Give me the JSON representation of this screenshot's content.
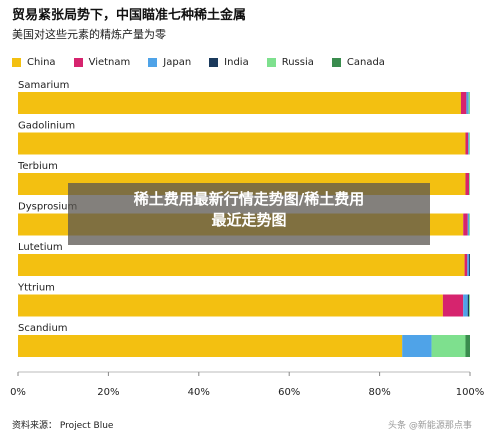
{
  "header": {
    "title": "贸易紧张局势下，中国瞄准七种稀土金属",
    "subtitle": "美国对这些元素的精炼产量为零"
  },
  "overlay": {
    "line1": "稀土费用最新行情走势图/稀土费用",
    "line2": "最近走势图"
  },
  "footer": {
    "source": "资料来源： Project Blue",
    "watermark": "头条 @新能源那点事"
  },
  "colors": {
    "China": "#F3C011",
    "Vietnam": "#D6246E",
    "Japan": "#4FA3E8",
    "India": "#1B3A5C",
    "Russia": "#7EE08E",
    "Canada": "#3A8C4E"
  },
  "chart_data": {
    "type": "bar",
    "orientation": "horizontal",
    "stacked": true,
    "title": "贸易紧张局势下，中国瞄准七种稀土金属",
    "subtitle": "美国对这些元素的精炼产量为零",
    "categories": [
      "Samarium",
      "Gadolinium",
      "Terbium",
      "Dysprosium",
      "Lutetium",
      "Yttrium",
      "Scandium"
    ],
    "series": [
      {
        "name": "China",
        "values": [
          98.0,
          99.0,
          99.0,
          98.5,
          98.8,
          94.0,
          85.0
        ]
      },
      {
        "name": "Vietnam",
        "values": [
          1.2,
          0.6,
          0.8,
          1.0,
          0.6,
          4.5,
          0.0
        ]
      },
      {
        "name": "Japan",
        "values": [
          0.5,
          0.2,
          0.0,
          0.3,
          0.4,
          1.0,
          6.5
        ]
      },
      {
        "name": "India",
        "values": [
          0.0,
          0.0,
          0.0,
          0.0,
          0.2,
          0.3,
          0.0
        ]
      },
      {
        "name": "Russia",
        "values": [
          0.3,
          0.2,
          0.2,
          0.2,
          0.0,
          0.2,
          7.5
        ]
      },
      {
        "name": "Canada",
        "values": [
          0.0,
          0.0,
          0.0,
          0.0,
          0.0,
          0.0,
          1.0
        ]
      }
    ],
    "xlim": [
      0,
      100
    ],
    "xticks": [
      "0%",
      "20%",
      "40%",
      "60%",
      "80%",
      "100%"
    ],
    "legend_position": "top-left",
    "grid": false
  }
}
